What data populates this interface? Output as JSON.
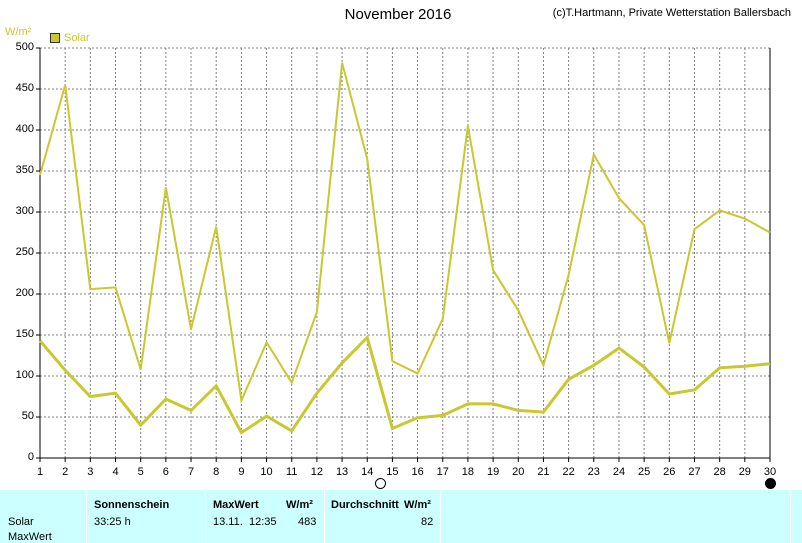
{
  "header": {
    "title": "November 2016",
    "credit": "(c)T.Hartmann, Private Wetterstation Ballersbach",
    "unit": "W/m²",
    "legend_label": "Solar"
  },
  "colors": {
    "series": "#c8c830",
    "grid": "#808080",
    "table_bg": "#ccffff"
  },
  "chart_data": {
    "type": "line",
    "title": "November 2016",
    "ylabel": "W/m²",
    "xlabel": "",
    "ylim": [
      0,
      500
    ],
    "xlim": [
      1,
      30
    ],
    "grid": true,
    "legend": "top-left",
    "y_ticks": [
      "0",
      "50",
      "100",
      "150",
      "200",
      "250",
      "300",
      "350",
      "400",
      "450",
      "500"
    ],
    "x_ticks": [
      "1",
      "2",
      "3",
      "4",
      "5",
      "6",
      "7",
      "8",
      "9",
      "10",
      "11",
      "12",
      "13",
      "14",
      "15",
      "16",
      "17",
      "18",
      "19",
      "20",
      "21",
      "22",
      "23",
      "24",
      "25",
      "26",
      "27",
      "28",
      "29",
      "30"
    ],
    "x": [
      1,
      2,
      3,
      4,
      5,
      6,
      7,
      8,
      9,
      10,
      11,
      12,
      13,
      14,
      15,
      16,
      17,
      18,
      19,
      20,
      21,
      22,
      23,
      24,
      25,
      26,
      27,
      28,
      29,
      30
    ],
    "series": [
      {
        "name": "Solar",
        "role": "max",
        "values": [
          345,
          455,
          206,
          208,
          108,
          330,
          157,
          282,
          70,
          141,
          92,
          178,
          482,
          365,
          118,
          103,
          170,
          405,
          229,
          180,
          113,
          223,
          370,
          317,
          284,
          140,
          279,
          302,
          292,
          275
        ]
      },
      {
        "name": "Solar",
        "role": "mean",
        "values": [
          143,
          107,
          75,
          79,
          40,
          72,
          58,
          88,
          31,
          51,
          33,
          79,
          116,
          147,
          36,
          49,
          52,
          66,
          66,
          58,
          56,
          96,
          113,
          134,
          111,
          78,
          83,
          110,
          112,
          115
        ]
      }
    ],
    "moon_phases": [
      {
        "day": 14.5,
        "phase": "full"
      },
      {
        "day": 30,
        "phase": "new"
      }
    ]
  },
  "table": {
    "col_sonnenschein": "Sonnenschein",
    "col_maxwert": "MaxWert",
    "col_unit": "W/m²",
    "col_durchschnitt": "Durchschnitt",
    "col_durchschnitt_unit": "W/m²",
    "row1_label": "Solar",
    "row2_label": "MaxWert",
    "sonnenschein_value": "33:25 h",
    "max_date": "13.11.",
    "max_time": "12:35",
    "max_value": "483",
    "avg_value": "82"
  }
}
